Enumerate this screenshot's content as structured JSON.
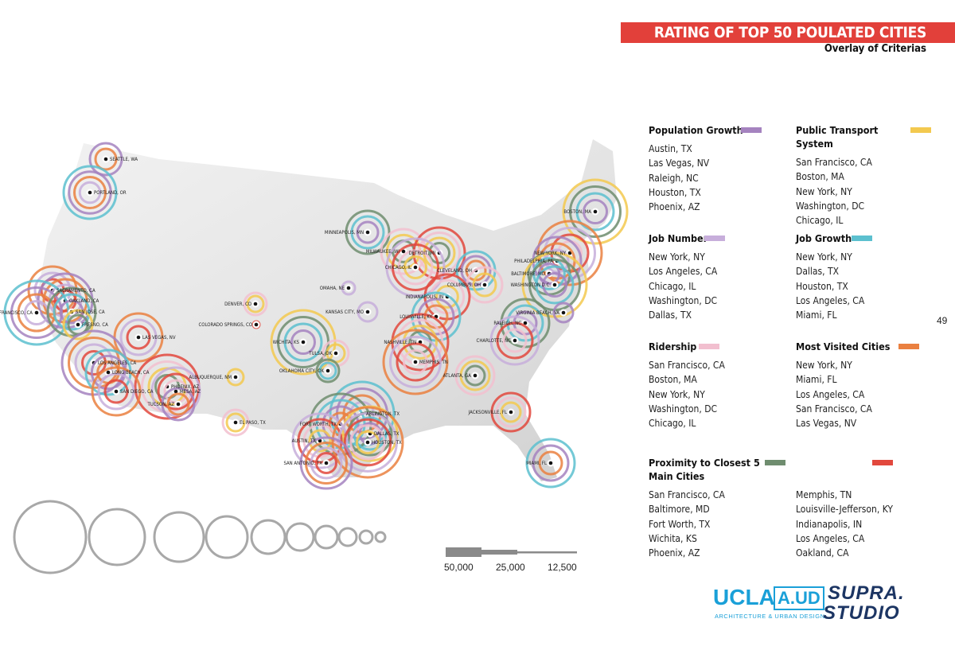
{
  "header": {
    "title": "RATING OF TOP 50 POULATED CITIES",
    "subtitle": "Overlay of Criterias"
  },
  "page_number": "49",
  "map": {
    "cities": [
      "SEATTLE, WA",
      "PORTLAND, OR",
      "MINNEAPOLIS, MN",
      "BOSTON, MA",
      "MILWAUKEE, WI",
      "DETROIT, MI",
      "CHICAGO, IL",
      "NEW YORK, NY",
      "PHILADELPHIA, PA",
      "CLEVELAND, OH",
      "BALTIMORE, MD",
      "WASHINGTON D.C.",
      "COLUMBUS, OH",
      "INDIANAPOLIS, IN",
      "OMAHA, NE",
      "SACRAMENTO, CA",
      "OAKLAND, CA",
      "SAN FRANCISCO, CA",
      "SAN JOSE, CA",
      "FRESNO, CA",
      "DENVER, CO",
      "COLORADO SPRINGS, CO",
      "KANSAS CITY, MO",
      "LAS VEGAS, NV",
      "VIRGINIA BEACH, VA",
      "LOUISVILLE, KY",
      "RALEIGH, NC",
      "WICHITA, KS",
      "TULSA, OK",
      "NASHVILLE, TN",
      "CHARLOTTE, NC",
      "MEMPHIS, TN",
      "LOS ANGELES, CA",
      "LONG BEACH, CA",
      "OKLAHOMA CITY, OK",
      "ALBUQUERQUE, NM",
      "ATLANTA, GA",
      "PHOENIX, AZ",
      "MESA, AZ",
      "SAN DIEGO, CA",
      "TUCSON, AZ",
      "ARLINGTON, TX",
      "FORT WORTH, TX",
      "DALLAS, TX",
      "EL PASO, TX",
      "JACKSONVILLE, FL",
      "AUSTIN, TX",
      "HOUSTON, TX",
      "SAN ANTONIO, TX",
      "MIAMI, FL"
    ]
  },
  "legend": {
    "groups": [
      {
        "title": "Population Growth",
        "color": "#a583bf",
        "items": [
          "Austin, TX",
          "Las Vegas, NV",
          "Raleigh, NC",
          "Houston, TX",
          "Phoenix, AZ"
        ]
      },
      {
        "title": "Public Transport System",
        "color": "#f3c94f",
        "items": [
          "San Francisco, CA",
          "Boston, MA",
          "New York, NY",
          "Washington, DC",
          "Chicago, IL"
        ]
      },
      {
        "title": "Job Number",
        "color": "#c7aedb",
        "items": [
          "New York, NY",
          "Los Angeles, CA",
          "Chicago, IL",
          "Washington, DC",
          "Dallas, TX"
        ]
      },
      {
        "title": "Job Growth",
        "color": "#5cc0cf",
        "items": [
          "New York, NY",
          "Dallas, TX",
          "Houston, TX",
          "Los Angeles, CA",
          "Miami, FL"
        ]
      },
      {
        "title": "Ridership",
        "color": "#f2bfcf",
        "items": [
          "San Francisco, CA",
          "Boston, MA",
          "New York, NY",
          "Washington, DC",
          "Chicago, IL"
        ]
      },
      {
        "title": "Most Visited Cities",
        "color": "#ea8040",
        "items": [
          "New York, NY",
          "Miami, FL",
          "Los Angeles, CA",
          "San Francisco, CA",
          "Las Vegas, NV"
        ]
      },
      {
        "title": "Proximity to Closest 5 Main Cities",
        "color": "#6f8d6f",
        "items": [
          "San Francisco, CA",
          "Baltimore, MD",
          "Fort Worth, TX",
          "Wichita, KS",
          "Phoenix, AZ"
        ]
      },
      {
        "color": "#e2483d",
        "items": [
          "Memphis, TN",
          "Louisville-Jefferson, KY",
          "Indianapolis, IN",
          "Los Angeles, CA",
          "Oakland, CA"
        ]
      }
    ]
  },
  "scale": {
    "labels": [
      "50,000",
      "25,000",
      "12,500"
    ]
  },
  "logos": {
    "ucla": "UCLA",
    "aud": "A.UD",
    "aud_subtitle": "ARCHITECTURE & URBAN DESIGN",
    "supra": "SUPRA.",
    "studio": "STUDIO"
  }
}
